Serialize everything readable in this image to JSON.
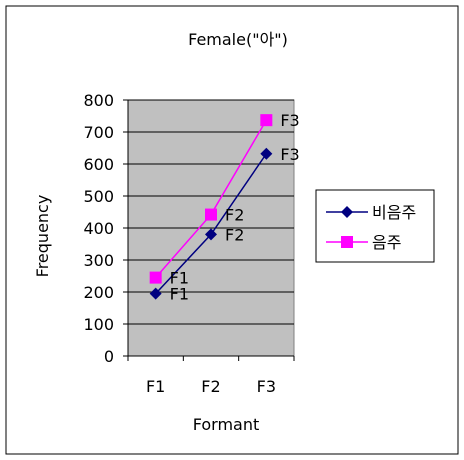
{
  "chart_data": {
    "type": "line",
    "title": "Female(\"아\")",
    "xlabel": "Formant",
    "ylabel": "Frequency",
    "categories": [
      "F1",
      "F2",
      "F3"
    ],
    "ylim": [
      0,
      800
    ],
    "yticks": [
      0,
      100,
      200,
      300,
      400,
      500,
      600,
      700,
      800
    ],
    "grid": true,
    "legend_position": "right",
    "series": [
      {
        "name": "비음주",
        "values": [
          195,
          380,
          632
        ],
        "point_labels": [
          "F1",
          "F2",
          "F3"
        ],
        "color": "#000080",
        "marker": "diamond"
      },
      {
        "name": "음주",
        "values": [
          245,
          442,
          737
        ],
        "point_labels": [
          "F1",
          "F2",
          "F3"
        ],
        "color": "#FF00FF",
        "marker": "square"
      }
    ],
    "plot_background": "#C0C0C0"
  }
}
